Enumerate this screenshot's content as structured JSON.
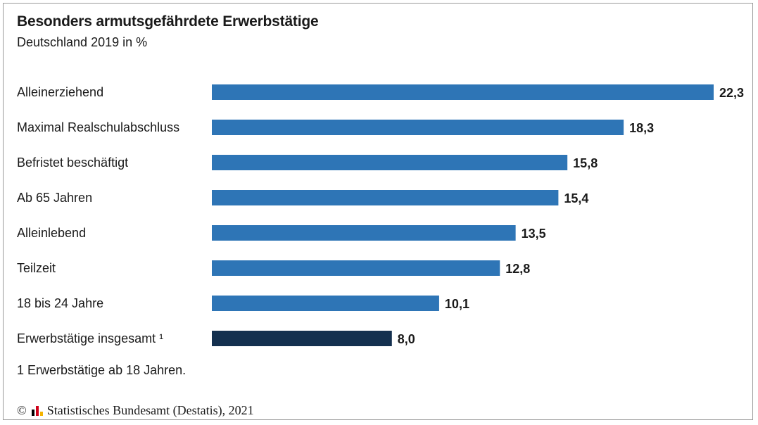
{
  "title": "Besonders armutsgefährdete Erwerbstätige",
  "subtitle": "Deutschland 2019 in %",
  "footnote": "1 Erwerbstätige ab 18 Jahren.",
  "source": {
    "copyright_symbol": "©",
    "logo_icon": "destatis-logo-icon",
    "text": "Statistisches Bundesamt (Destatis), 2021"
  },
  "colors": {
    "bar": "#2e75b6",
    "bar_highlight": "#14304f",
    "logo": [
      "#000000",
      "#d0021b",
      "#f5b400"
    ]
  },
  "chart_data": {
    "type": "bar",
    "orientation": "horizontal",
    "title": "Besonders armutsgefährdete Erwerbstätige",
    "subtitle": "Deutschland 2019 in %",
    "categories": [
      "Alleinerziehend",
      "Maximal Realschulabschluss",
      "Befristet beschäftigt",
      "Ab 65 Jahren",
      "Alleinlebend",
      "Teilzeit",
      "18 bis 24 Jahre",
      "Erwerbstätige insgesamt ¹"
    ],
    "values": [
      22.3,
      18.3,
      15.8,
      15.4,
      13.5,
      12.8,
      10.1,
      8.0
    ],
    "value_labels": [
      "22,3",
      "18,3",
      "15,8",
      "15,4",
      "13,5",
      "12,8",
      "10,1",
      "8,0"
    ],
    "highlight_index": 7,
    "xlim": [
      0,
      22.3
    ],
    "grid": false,
    "legend": "none"
  }
}
